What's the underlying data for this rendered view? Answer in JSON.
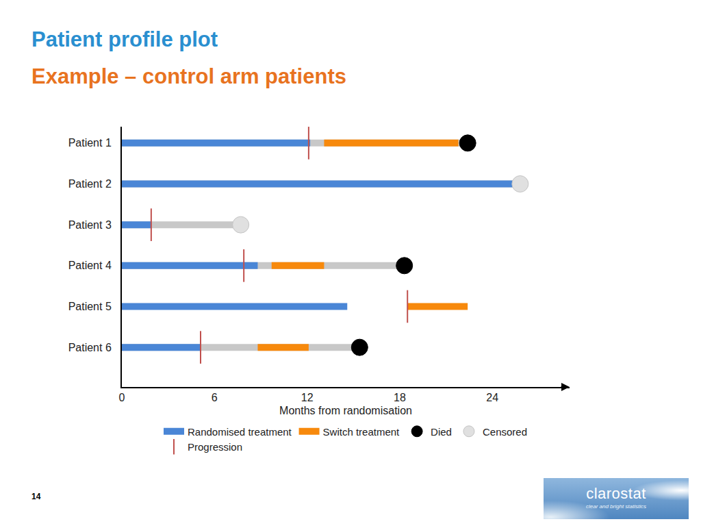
{
  "header": {
    "title": "Patient profile plot",
    "subtitle": "Example – control arm patients"
  },
  "page_number": "14",
  "logo": {
    "name": "clarostat",
    "tagline": "clear and bright statistics"
  },
  "chart_data": {
    "type": "swimmer",
    "categories": [
      "Patient 1",
      "Patient 2",
      "Patient 3",
      "Patient 4",
      "Patient 5",
      "Patient 6"
    ],
    "x_label": "Months from randomisation",
    "xlim": [
      0,
      29
    ],
    "xticks": [
      0,
      6,
      12,
      18,
      24
    ],
    "grid": false,
    "legend": "bottom",
    "series": [
      {
        "name": "Randomised treatment",
        "type": "range",
        "color": "#4a86d6",
        "values": [
          [
            0,
            12.2
          ],
          [
            0,
            25.8
          ],
          [
            0,
            1.9
          ],
          [
            0,
            8.8
          ],
          [
            0,
            14.6
          ],
          [
            0,
            5.1
          ]
        ]
      },
      {
        "name": "Switch treatment",
        "type": "range",
        "color": "#f7890c",
        "values": [
          [
            13.1,
            21.8
          ],
          null,
          null,
          [
            9.7,
            13.1
          ],
          [
            18.5,
            22.4
          ],
          [
            8.8,
            12.1
          ]
        ]
      },
      {
        "name": "Died",
        "type": "scatter",
        "marker": "circle",
        "color": "#000000",
        "values": [
          22.4,
          null,
          null,
          18.3,
          null,
          15.4
        ]
      },
      {
        "name": "Censored",
        "type": "scatter",
        "marker": "circle",
        "color": "#e0e0e0",
        "values": [
          null,
          25.8,
          7.7,
          null,
          null,
          null
        ]
      },
      {
        "name": "Progression",
        "type": "scatter",
        "marker": "line",
        "color": "#c0504d",
        "values": [
          12.1,
          null,
          1.9,
          7.9,
          18.5,
          5.1
        ]
      }
    ]
  }
}
